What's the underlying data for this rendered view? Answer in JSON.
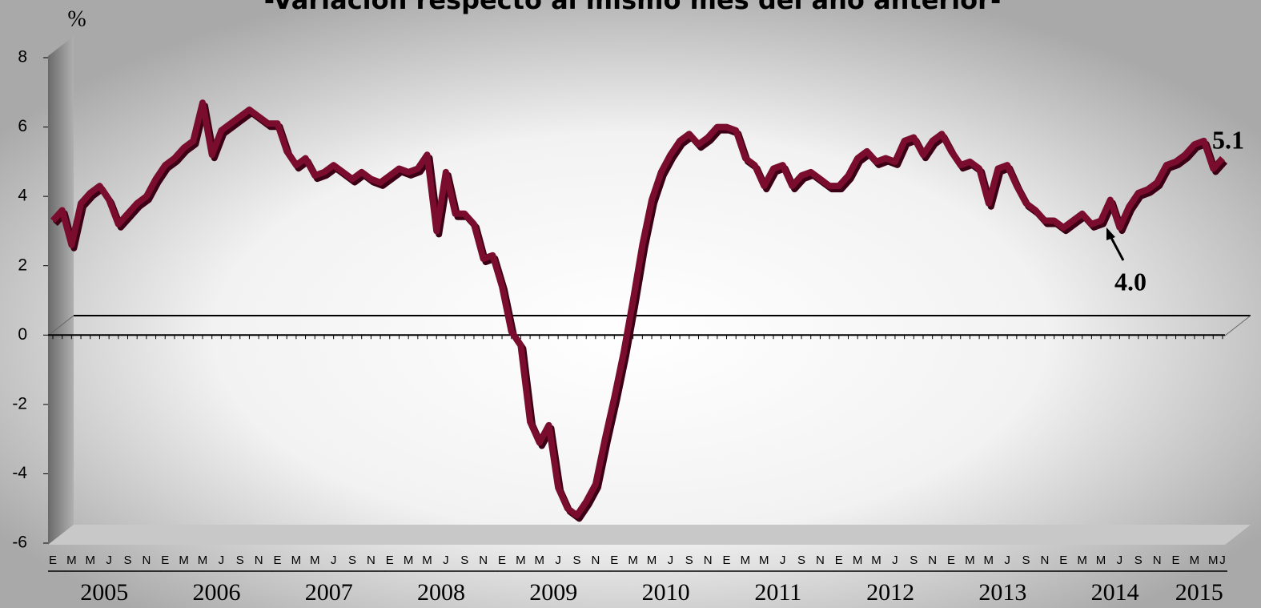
{
  "chart_data": {
    "type": "line",
    "title": "-Variación respecto al mismo mes del año anterior-",
    "y_label": "%",
    "categories": [
      "E",
      null,
      "M",
      null,
      "M",
      null,
      "J",
      null,
      "S",
      null,
      "N",
      null,
      "E",
      null,
      "M",
      null,
      "M",
      null,
      "J",
      null,
      "S",
      null,
      "N",
      null,
      "E",
      null,
      "M",
      null,
      "M",
      null,
      "J",
      null,
      "S",
      null,
      "N",
      null,
      "E",
      null,
      "M",
      null,
      "M",
      null,
      "J",
      null,
      "S",
      null,
      "N",
      null,
      "E",
      null,
      "M",
      null,
      "M",
      null,
      "J",
      null,
      "S",
      null,
      "N",
      null,
      "E",
      null,
      "M",
      null,
      "M",
      null,
      "J",
      null,
      "S",
      null,
      "N",
      null,
      "E",
      null,
      "M",
      null,
      "M",
      null,
      "J",
      null,
      "S",
      null,
      "N",
      null,
      "E",
      null,
      "M",
      null,
      "M",
      null,
      "J",
      null,
      "S",
      null,
      "N",
      null,
      "E",
      null,
      "M",
      null,
      "M",
      null,
      "J",
      null,
      "S",
      null,
      "N",
      null,
      "E",
      null,
      "M",
      null,
      "M",
      null,
      "J",
      null,
      "S",
      null,
      "N",
      null,
      "E",
      null,
      "M",
      null,
      "M",
      "J"
    ],
    "years": [
      "2005",
      "2006",
      "2007",
      "2008",
      "2009",
      "2010",
      "2011",
      "2012",
      "2013",
      "2014",
      "2015"
    ],
    "series": [
      {
        "color": "#7a0a2e",
        "values": [
          3.3,
          3.6,
          2.6,
          3.8,
          4.1,
          4.3,
          3.9,
          3.2,
          3.5,
          3.8,
          4.0,
          4.5,
          4.9,
          5.1,
          5.4,
          5.6,
          6.7,
          5.2,
          5.9,
          6.1,
          6.3,
          6.5,
          6.3,
          6.1,
          6.1,
          5.3,
          4.9,
          5.1,
          4.6,
          4.7,
          4.9,
          4.7,
          4.5,
          4.7,
          4.5,
          4.4,
          4.6,
          4.8,
          4.7,
          4.8,
          5.2,
          3.0,
          4.7,
          3.5,
          3.5,
          3.2,
          2.2,
          2.3,
          1.4,
          0.1,
          -0.3,
          -2.5,
          -3.1,
          -2.6,
          -4.4,
          -5.0,
          -5.2,
          -4.8,
          -4.3,
          -3.0,
          -1.8,
          -0.5,
          1.0,
          2.6,
          3.9,
          4.7,
          5.2,
          5.6,
          5.8,
          5.5,
          5.7,
          6.0,
          6.0,
          5.9,
          5.1,
          4.9,
          4.3,
          4.8,
          4.9,
          4.3,
          4.6,
          4.7,
          4.5,
          4.3,
          4.3,
          4.6,
          5.1,
          5.3,
          5.0,
          5.1,
          5.0,
          5.6,
          5.7,
          5.2,
          5.6,
          5.8,
          5.3,
          4.9,
          5.0,
          4.8,
          3.8,
          4.8,
          4.9,
          4.3,
          3.8,
          3.6,
          3.3,
          3.3,
          3.1,
          3.3,
          3.5,
          3.2,
          3.3,
          3.9,
          3.1,
          3.7,
          4.1,
          4.2,
          4.4,
          4.9,
          5.0,
          5.2,
          5.5,
          5.6,
          4.8,
          5.1
        ]
      }
    ],
    "annotations": [
      "5.1",
      "4.0"
    ],
    "ylim": [
      -6,
      8
    ],
    "yticks": [
      -6,
      -4,
      -2,
      0,
      2,
      4,
      6,
      8
    ]
  }
}
